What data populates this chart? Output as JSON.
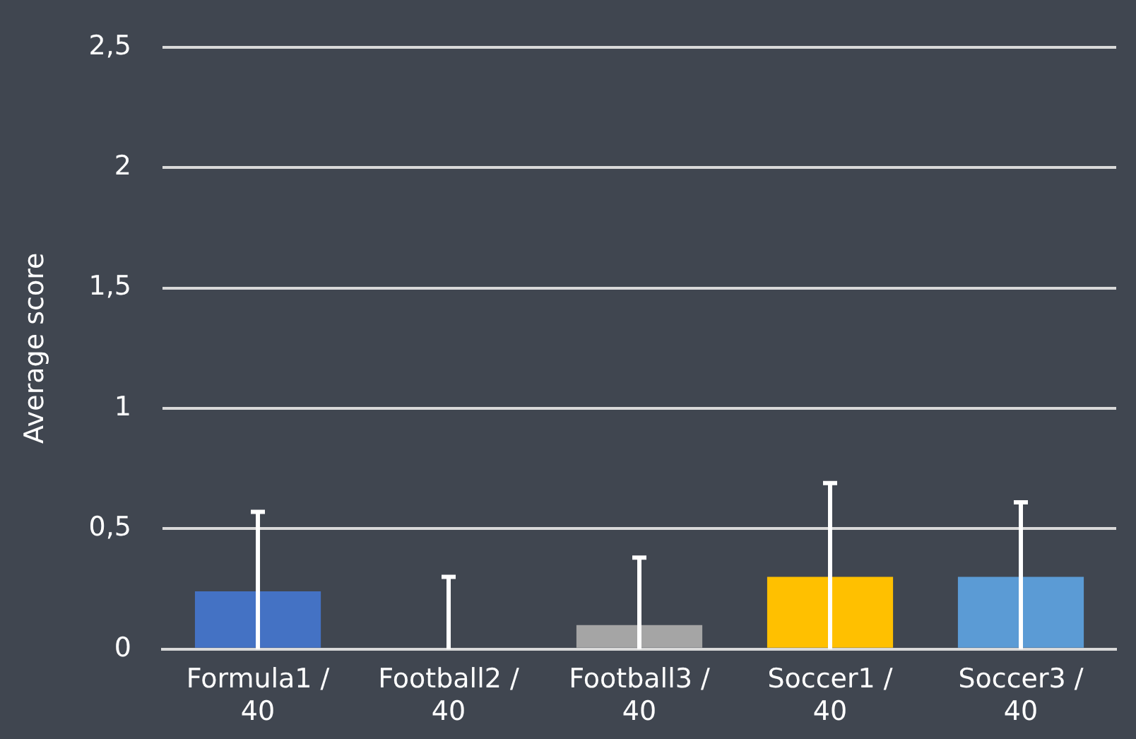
{
  "chart_data": {
    "type": "bar",
    "ylabel": "Average score",
    "categories": [
      "Formula1 / 40",
      "Football2 / 40",
      "Football3 / 40",
      "Soccer1 / 40",
      "Soccer3 / 40"
    ],
    "values": [
      0.24,
      0,
      0.1,
      0.3,
      0.3
    ],
    "colors": [
      "#4472c4",
      "#ed7d31",
      "#a5a5a5",
      "#ffc000",
      "#5b9bd5"
    ],
    "errors": [
      [
        0,
        0.57
      ],
      [
        0,
        0.3
      ],
      [
        0,
        0.38
      ],
      [
        0,
        0.69
      ],
      [
        0,
        0.61
      ]
    ],
    "ylim": [
      0,
      2.5
    ],
    "yticks": [
      {
        "value": 0,
        "label": "0"
      },
      {
        "value": 0.5,
        "label": "0,5"
      },
      {
        "value": 1,
        "label": "1"
      },
      {
        "value": 1.5,
        "label": "1,5"
      },
      {
        "value": 2,
        "label": "2"
      },
      {
        "value": 2.5,
        "label": "2,5"
      }
    ],
    "grid": "y"
  }
}
